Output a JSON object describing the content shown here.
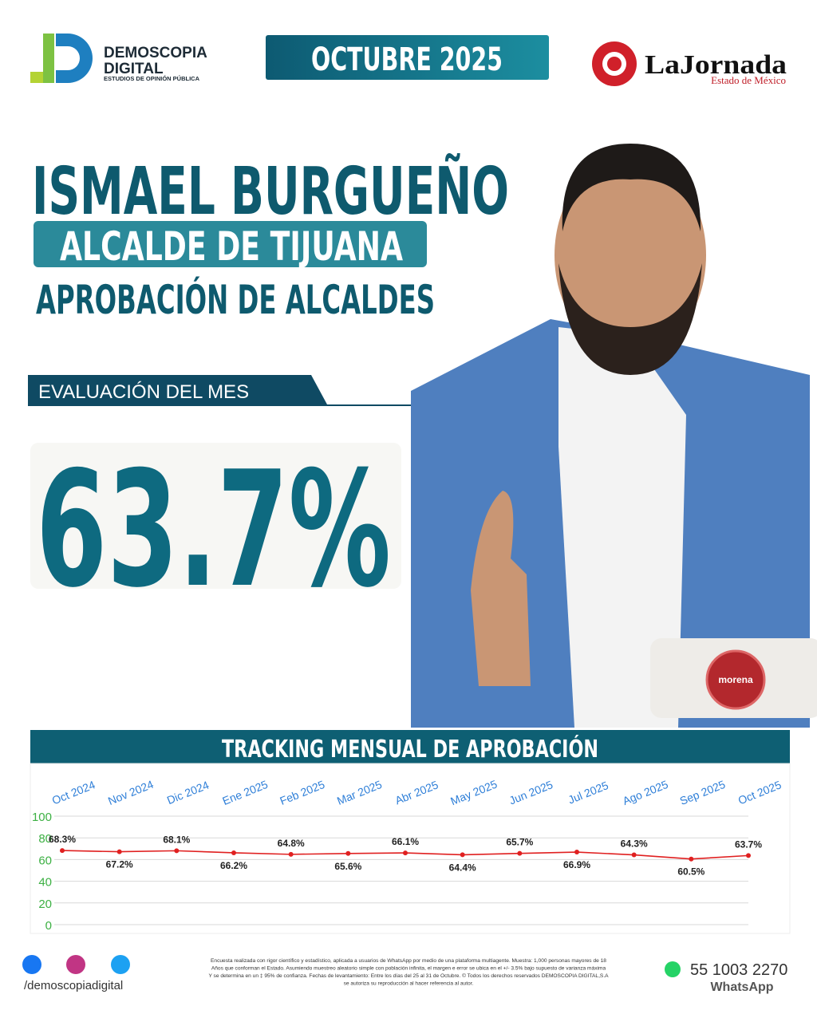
{
  "header": {
    "brand": "DEMOSCOPIA",
    "brand_sub": "DIGITAL",
    "tagline": "ESTUDIOS DE OPINIÓN PÚBLICA",
    "date": "OCTUBRE 2025",
    "newspaper": "LaJornada",
    "edition": "Estado de México"
  },
  "profile": {
    "name": "ISMAEL BURGUEÑO",
    "role": "ALCALDE DE TIJUANA",
    "topic": "APROBACIÓN DE ALCALDES",
    "evaluation_label": "EVALUACIÓN DEL MES",
    "evaluation_value": "63.7%",
    "party": "morena"
  },
  "chart_data": {
    "type": "line",
    "title": "TRACKING MENSUAL DE APROBACIÓN",
    "categories": [
      "Oct 2024",
      "Nov 2024",
      "Dic 2024",
      "Ene 2025",
      "Feb 2025",
      "Mar 2025",
      "Abr 2025",
      "May 2025",
      "Jun 2025",
      "Jul 2025",
      "Ago 2025",
      "Sep 2025",
      "Oct 2025"
    ],
    "values": [
      68.3,
      67.2,
      68.1,
      66.2,
      64.8,
      65.6,
      66.1,
      64.4,
      65.7,
      66.9,
      64.3,
      60.5,
      63.7
    ],
    "value_labels": [
      "68.3%",
      "67.2%",
      "68.1%",
      "66.2%",
      "64.8%",
      "65.6%",
      "66.1%",
      "64.4%",
      "65.7%",
      "66.9%",
      "64.3%",
      "60.5%",
      "63.7%"
    ],
    "color": "#e02020",
    "ylim": [
      0,
      100
    ],
    "yticks": [
      0,
      20,
      40,
      60,
      80,
      100
    ],
    "grid": true
  },
  "footer": {
    "handle": "/demoscopiadigital",
    "disclaimer": [
      "Encuesta realizada con rigor científico y estadístico, aplicada a usuarios de WhatsApp por medio de una plataforma multiagente. Muestra: 1,000 personas mayores de 18",
      "Años que conforman el Estado. Asumiendo muestreo aleatorio simple con población infinita, el margen e error se ubica en el +/- 3.5% bajo supuesto de varianza máxima",
      "Y se determina en un ‡ 95% de confianza. Fechas de levantamiento: Entre los días del 25 al 31 de Octubre. © Todos los derechos reservados DEMOSCOPIA DIGITAL,S.A",
      "se autoriza su reproducción al hacer referencia al autor."
    ],
    "phone": "55 1003 2270",
    "whatsapp": "WhatsApp"
  }
}
